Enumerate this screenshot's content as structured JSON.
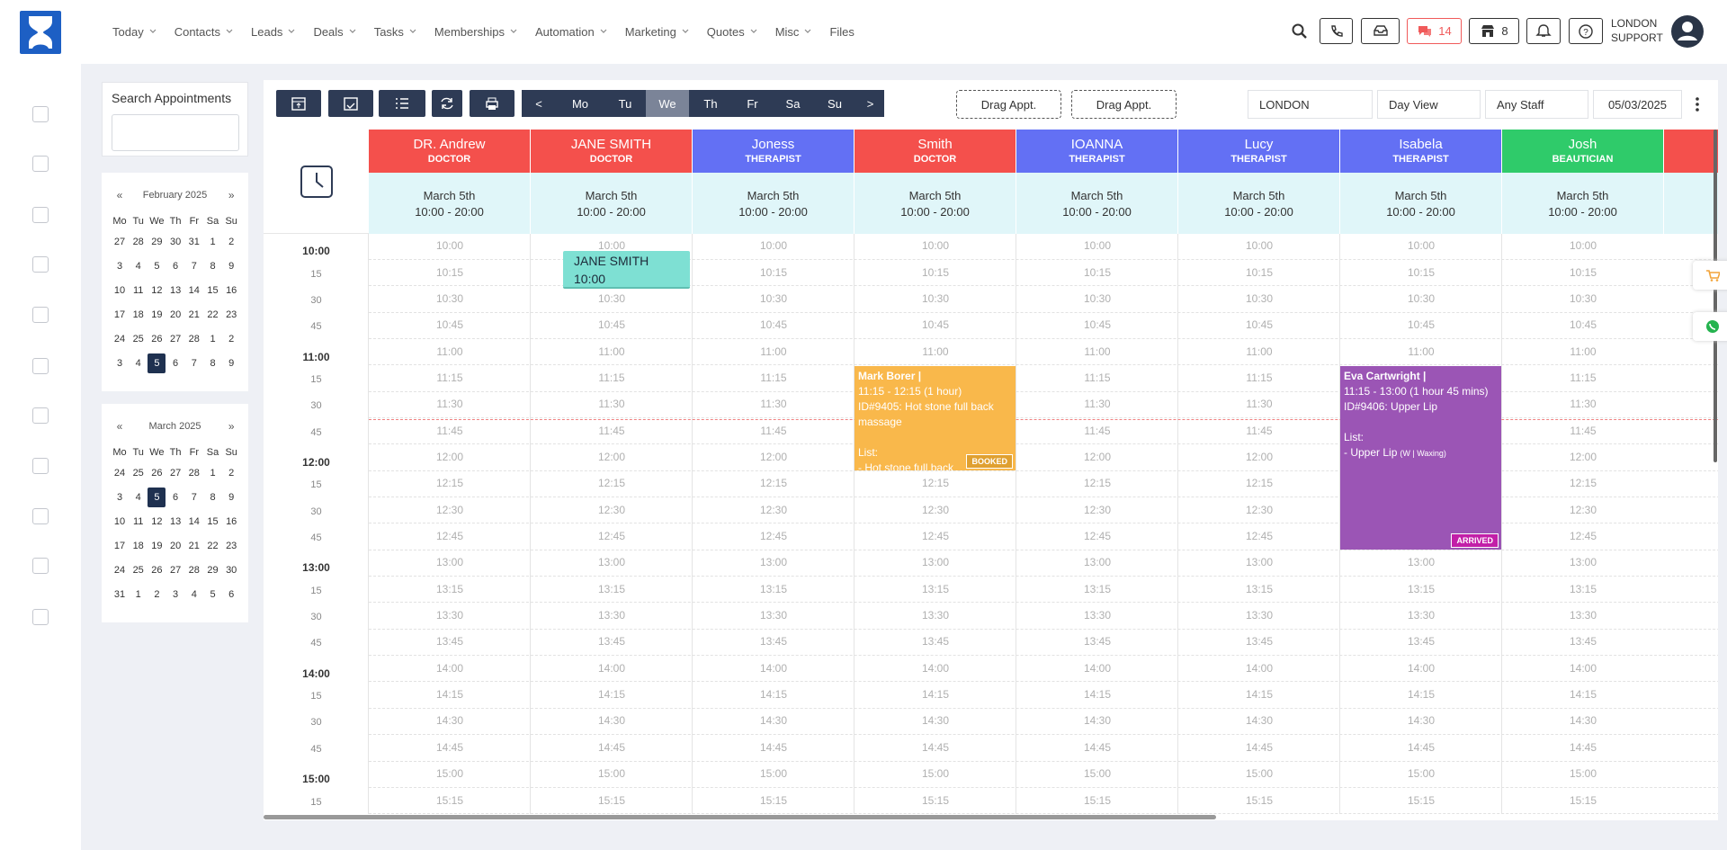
{
  "nav": {
    "items": [
      "Today",
      "Contacts",
      "Leads",
      "Deals",
      "Tasks",
      "Memberships",
      "Automation",
      "Marketing",
      "Quotes",
      "Misc",
      "Files"
    ]
  },
  "header": {
    "chat_count": 14,
    "store_count": 8,
    "user": [
      "LONDON",
      "SUPPORT"
    ]
  },
  "search": {
    "title": "Search Appointments"
  },
  "calendars": [
    {
      "prev": "«",
      "title": "February 2025",
      "next": "»",
      "weekdays": [
        "Mo",
        "Tu",
        "We",
        "Th",
        "Fr",
        "Sa",
        "Su"
      ],
      "weeks": [
        [
          27,
          28,
          29,
          30,
          31,
          1,
          2
        ],
        [
          3,
          4,
          5,
          6,
          7,
          8,
          9
        ],
        [
          10,
          11,
          12,
          13,
          14,
          15,
          16
        ],
        [
          17,
          18,
          19,
          20,
          21,
          22,
          23
        ],
        [
          24,
          25,
          26,
          27,
          28,
          1,
          2
        ],
        [
          3,
          4,
          5,
          6,
          7,
          8,
          9
        ]
      ]
    },
    {
      "prev": "«",
      "title": "March 2025",
      "next": "»",
      "weekdays": [
        "Mo",
        "Tu",
        "We",
        "Th",
        "Fr",
        "Sa",
        "Su"
      ],
      "weeks": [
        [
          24,
          25,
          26,
          27,
          28,
          1,
          2
        ],
        [
          3,
          4,
          5,
          6,
          7,
          8,
          9
        ],
        [
          10,
          11,
          12,
          13,
          14,
          15,
          16
        ],
        [
          17,
          18,
          19,
          20,
          21,
          22,
          23
        ],
        [
          24,
          25,
          26,
          27,
          28,
          29,
          30
        ],
        [
          31,
          1,
          2,
          3,
          4,
          5,
          6
        ]
      ]
    }
  ],
  "toolbar": {
    "days": [
      "<",
      "Mo",
      "Tu",
      "We",
      "Th",
      "Fr",
      "Sa",
      "Su",
      ">"
    ],
    "drag": [
      "Drag Appt.",
      "Drag Appt."
    ],
    "location": "LONDON",
    "view": "Day View",
    "staff": "Any Staff",
    "date": "05/03/2025"
  },
  "staff": [
    {
      "name": "DR. Andrew",
      "role": "DOCTOR",
      "date": "March 5th",
      "hours": "10:00 - 20:00",
      "color": "#f4504c"
    },
    {
      "name": "JANE SMITH",
      "role": "DOCTOR",
      "date": "March 5th",
      "hours": "10:00 - 20:00",
      "color": "#f4504c",
      "appointments": [
        {
          "client": "JANE SMITH",
          "time": "10:00",
          "color": "#7ee0d3"
        }
      ]
    },
    {
      "name": "Joness",
      "role": "THERAPIST",
      "date": "March 5th",
      "hours": "10:00 - 20:00",
      "color": "#6370f4"
    },
    {
      "name": "Smith",
      "role": "DOCTOR",
      "date": "March 5th",
      "hours": "10:00 - 20:00",
      "color": "#f4504c",
      "appointments": [
        {
          "client": "Mark Borer |",
          "time": "11:15 - 12:15 (1 hour)",
          "service": "ID#9405: Hot stone full back massage",
          "list_title": "List:",
          "items": [
            "- Hot stone full back"
          ],
          "status": "BOOKED",
          "color": "#f9b84b",
          "status_color": "#e0a030"
        }
      ]
    },
    {
      "name": "IOANNA",
      "role": "THERAPIST",
      "date": "March 5th",
      "hours": "10:00 - 20:00",
      "color": "#6370f4"
    },
    {
      "name": "Lucy",
      "role": "THERAPIST",
      "date": "March 5th",
      "hours": "10:00 - 20:00",
      "color": "#6370f4"
    },
    {
      "name": "Isabela",
      "role": "THERAPIST",
      "date": "March 5th",
      "hours": "10:00 - 20:00",
      "color": "#6370f4",
      "appointments": [
        {
          "client": "Eva Cartwright |",
          "time": "11:15 - 13:00 (1 hour 45 mins)",
          "service": "ID#9406: Upper Lip",
          "list_title": "List:",
          "items": [
            "- Upper Lip"
          ],
          "item_note": "(W | Waxing)",
          "status": "ARRIVED",
          "color": "#9b55b5",
          "status_color": "#c21fa8"
        }
      ]
    },
    {
      "name": "Josh",
      "role": "BEAUTICIAN",
      "date": "March 5th",
      "hours": "10:00 - 20:00",
      "color": "#2fcb6a"
    }
  ],
  "time_labels": [
    "10:00",
    "15",
    "30",
    "45",
    "11:00",
    "15",
    "30",
    "45",
    "12:00",
    "15",
    "30",
    "45",
    "13:00",
    "15",
    "30",
    "45",
    "14:00",
    "15",
    "30",
    "45",
    "15:00",
    "15"
  ],
  "slots": [
    "10:00",
    "10:15",
    "10:30",
    "10:45",
    "11:00",
    "11:15",
    "11:30",
    "11:45",
    "12:00",
    "12:15",
    "12:30",
    "12:45",
    "13:00",
    "13:15",
    "13:30",
    "13:45",
    "14:00",
    "14:15",
    "14:30",
    "14:45",
    "15:00",
    "15:15"
  ]
}
